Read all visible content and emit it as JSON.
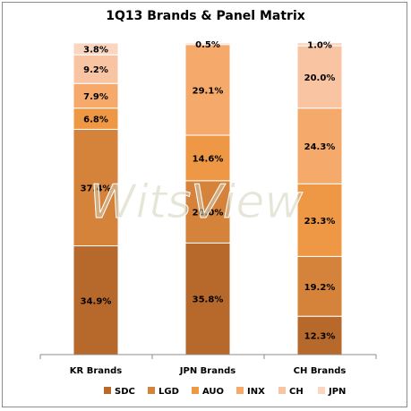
{
  "chart_data": {
    "type": "stacked-bar",
    "title": "1Q13 Brands & Panel Matrix",
    "categories": [
      "KR Brands",
      "JPN Brands",
      "CH Brands"
    ],
    "ylim": [
      0,
      100
    ],
    "value_unit": "%",
    "grid": false,
    "legend_position": "bottom",
    "series": [
      {
        "name": "SDC",
        "color": "#b7692c",
        "values": [
          34.9,
          35.8,
          12.3
        ]
      },
      {
        "name": "LGD",
        "color": "#d5823a",
        "values": [
          37.4,
          20.0,
          19.2
        ]
      },
      {
        "name": "AUO",
        "color": "#ee9845",
        "values": [
          6.8,
          14.6,
          23.3
        ]
      },
      {
        "name": "INX",
        "color": "#f5aa6b",
        "values": [
          7.9,
          29.1,
          24.3
        ]
      },
      {
        "name": "CH",
        "color": "#f8c4a2",
        "values": [
          9.2,
          0.0,
          20.0
        ]
      },
      {
        "name": "JPN",
        "color": "#fad6c0",
        "values": [
          3.8,
          0.5,
          1.0
        ]
      }
    ],
    "data_labels": [
      [
        "34.9%",
        "37.4%",
        "6.8%",
        "7.9%",
        "9.2%",
        "3.8%"
      ],
      [
        "35.8%",
        "20.0%",
        "14.6%",
        "29.1%",
        "",
        "0.5%"
      ],
      [
        "12.3%",
        "19.2%",
        "23.3%",
        "24.3%",
        "20.0%",
        "1.0%"
      ]
    ],
    "watermark": "WitsView"
  }
}
